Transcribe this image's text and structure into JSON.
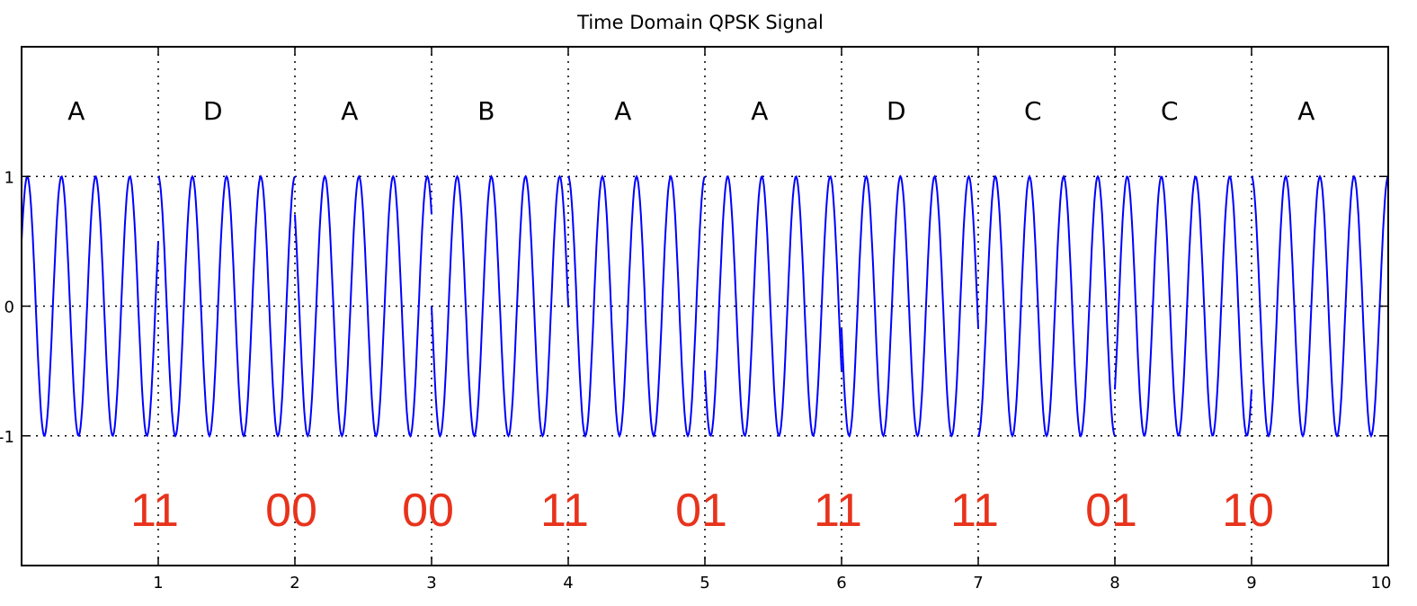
{
  "colors": {
    "signal": "#0000ff",
    "bits": "#e8331c",
    "axes": "#000000",
    "grid": "#000000",
    "background": "#ffffff"
  },
  "chart_data": {
    "type": "line",
    "title": "Time Domain QPSK Signal",
    "xlabel": "",
    "ylabel": "",
    "xlim": [
      0,
      10
    ],
    "ylim": [
      -2,
      2
    ],
    "x_ticks": [
      "1",
      "2",
      "3",
      "4",
      "5",
      "6",
      "7",
      "8",
      "9",
      "10"
    ],
    "y_ticks": [
      "1",
      "0",
      "-1"
    ],
    "grid": "dotted",
    "carrier_cycles_per_unit": 4,
    "series": [
      {
        "symbols": [
          "A",
          "D",
          "A",
          "B",
          "A",
          "A",
          "D",
          "C",
          "C",
          "A"
        ],
        "phase_deg": [
          -60,
          0,
          45,
          90,
          0,
          120,
          100,
          180,
          230,
          0
        ]
      }
    ],
    "symbol_labels": [
      "A",
      "D",
      "A",
      "B",
      "A",
      "A",
      "D",
      "C",
      "C",
      "A"
    ],
    "bit_annotations": [
      {
        "x": 1,
        "text": "11"
      },
      {
        "x": 2,
        "text": "00"
      },
      {
        "x": 3,
        "text": "00"
      },
      {
        "x": 4,
        "text": "11"
      },
      {
        "x": 5,
        "text": "01"
      },
      {
        "x": 6,
        "text": "11"
      },
      {
        "x": 7,
        "text": "11"
      },
      {
        "x": 8,
        "text": "01"
      },
      {
        "x": 9,
        "text": "10"
      }
    ]
  }
}
